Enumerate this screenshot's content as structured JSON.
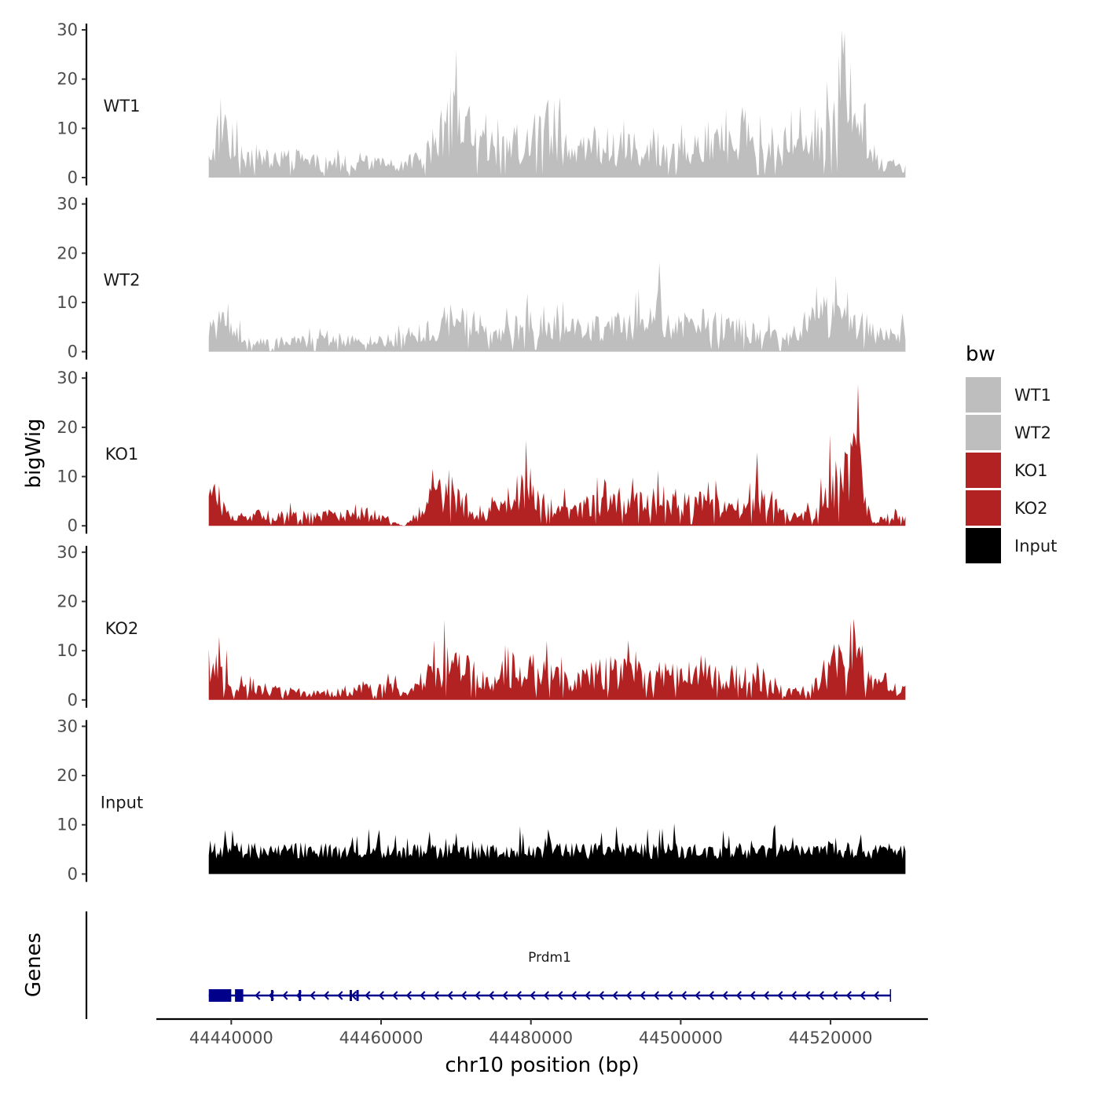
{
  "chart_data": {
    "type": "area",
    "chromosome": "chr10",
    "xlabel": "chr10 position (bp)",
    "ylabel": "bigWig",
    "xlim": [
      44430000,
      44533000
    ],
    "data_range": [
      44437000,
      44530000
    ],
    "xticks": [
      44440000,
      44460000,
      44480000,
      44500000,
      44520000
    ],
    "xtick_labels": [
      "44440000",
      "44460000",
      "44480000",
      "44500000",
      "44520000"
    ],
    "ylim": [
      0,
      30
    ],
    "yticks": [
      0,
      10,
      20,
      30
    ],
    "ytick_labels": [
      "0",
      "10",
      "20",
      "30"
    ],
    "legend": {
      "title": "bw",
      "position": "right",
      "entries": [
        {
          "label": "WT1",
          "color": "#bebebe"
        },
        {
          "label": "WT2",
          "color": "#bebebe"
        },
        {
          "label": "KO1",
          "color": "#b22222"
        },
        {
          "label": "KO2",
          "color": "#b22222"
        },
        {
          "label": "Input",
          "color": "#000000"
        }
      ]
    },
    "series": [
      {
        "name": "WT1",
        "color": "#bebebe",
        "profile": [
          {
            "x": 44437000,
            "y": 5
          },
          {
            "x": 44438800,
            "y": 17
          },
          {
            "x": 44441000,
            "y": 7
          },
          {
            "x": 44444000,
            "y": 5
          },
          {
            "x": 44447000,
            "y": 6
          },
          {
            "x": 44452000,
            "y": 4
          },
          {
            "x": 44458000,
            "y": 4
          },
          {
            "x": 44463000,
            "y": 3
          },
          {
            "x": 44466000,
            "y": 7
          },
          {
            "x": 44468000,
            "y": 12
          },
          {
            "x": 44469800,
            "y": 18
          },
          {
            "x": 44472000,
            "y": 10
          },
          {
            "x": 44476000,
            "y": 8
          },
          {
            "x": 44480000,
            "y": 12
          },
          {
            "x": 44485000,
            "y": 9
          },
          {
            "x": 44490000,
            "y": 8
          },
          {
            "x": 44495000,
            "y": 9
          },
          {
            "x": 44500000,
            "y": 7
          },
          {
            "x": 44505000,
            "y": 9
          },
          {
            "x": 44508000,
            "y": 14
          },
          {
            "x": 44512000,
            "y": 8
          },
          {
            "x": 44517000,
            "y": 9
          },
          {
            "x": 44520000,
            "y": 15
          },
          {
            "x": 44521500,
            "y": 25
          },
          {
            "x": 44523000,
            "y": 19
          },
          {
            "x": 44525000,
            "y": 7
          },
          {
            "x": 44528000,
            "y": 3
          },
          {
            "x": 44530000,
            "y": 3
          }
        ]
      },
      {
        "name": "WT2",
        "color": "#bebebe",
        "profile": [
          {
            "x": 44437000,
            "y": 9
          },
          {
            "x": 44439000,
            "y": 7
          },
          {
            "x": 44442000,
            "y": 3
          },
          {
            "x": 44446000,
            "y": 2
          },
          {
            "x": 44450000,
            "y": 3
          },
          {
            "x": 44455000,
            "y": 3
          },
          {
            "x": 44460000,
            "y": 3
          },
          {
            "x": 44465000,
            "y": 5
          },
          {
            "x": 44468000,
            "y": 8
          },
          {
            "x": 44471000,
            "y": 9
          },
          {
            "x": 44475000,
            "y": 5
          },
          {
            "x": 44480000,
            "y": 8
          },
          {
            "x": 44485000,
            "y": 6
          },
          {
            "x": 44490000,
            "y": 7
          },
          {
            "x": 44495000,
            "y": 8
          },
          {
            "x": 44496500,
            "y": 16
          },
          {
            "x": 44498000,
            "y": 7
          },
          {
            "x": 44502000,
            "y": 8
          },
          {
            "x": 44506000,
            "y": 7
          },
          {
            "x": 44510000,
            "y": 6
          },
          {
            "x": 44514000,
            "y": 3
          },
          {
            "x": 44518000,
            "y": 9
          },
          {
            "x": 44522000,
            "y": 12
          },
          {
            "x": 44524000,
            "y": 8
          },
          {
            "x": 44527000,
            "y": 4
          },
          {
            "x": 44530000,
            "y": 5
          }
        ]
      },
      {
        "name": "KO1",
        "color": "#b22222",
        "profile": [
          {
            "x": 44437000,
            "y": 9
          },
          {
            "x": 44438500,
            "y": 8
          },
          {
            "x": 44440000,
            "y": 2
          },
          {
            "x": 44444000,
            "y": 3
          },
          {
            "x": 44450000,
            "y": 3
          },
          {
            "x": 44455000,
            "y": 3
          },
          {
            "x": 44460000,
            "y": 2
          },
          {
            "x": 44463000,
            "y": 0
          },
          {
            "x": 44465000,
            "y": 3
          },
          {
            "x": 44467000,
            "y": 9
          },
          {
            "x": 44469000,
            "y": 11
          },
          {
            "x": 44471000,
            "y": 6
          },
          {
            "x": 44474000,
            "y": 3
          },
          {
            "x": 44477000,
            "y": 7
          },
          {
            "x": 44479500,
            "y": 12
          },
          {
            "x": 44482000,
            "y": 7
          },
          {
            "x": 44486000,
            "y": 4
          },
          {
            "x": 44490000,
            "y": 8
          },
          {
            "x": 44493000,
            "y": 6
          },
          {
            "x": 44497000,
            "y": 8
          },
          {
            "x": 44500000,
            "y": 6
          },
          {
            "x": 44503000,
            "y": 7
          },
          {
            "x": 44507000,
            "y": 4
          },
          {
            "x": 44510000,
            "y": 9
          },
          {
            "x": 44512000,
            "y": 7
          },
          {
            "x": 44515000,
            "y": 2
          },
          {
            "x": 44518000,
            "y": 4
          },
          {
            "x": 44520000,
            "y": 12
          },
          {
            "x": 44522500,
            "y": 15
          },
          {
            "x": 44523800,
            "y": 29
          },
          {
            "x": 44525000,
            "y": 4
          },
          {
            "x": 44526000,
            "y": 1
          },
          {
            "x": 44528000,
            "y": 3
          },
          {
            "x": 44530000,
            "y": 2
          }
        ]
      },
      {
        "name": "KO2",
        "color": "#b22222",
        "profile": [
          {
            "x": 44437000,
            "y": 7
          },
          {
            "x": 44438200,
            "y": 13
          },
          {
            "x": 44440000,
            "y": 3
          },
          {
            "x": 44445000,
            "y": 3
          },
          {
            "x": 44450000,
            "y": 2
          },
          {
            "x": 44455000,
            "y": 2
          },
          {
            "x": 44460000,
            "y": 4
          },
          {
            "x": 44464000,
            "y": 2
          },
          {
            "x": 44466000,
            "y": 6
          },
          {
            "x": 44469000,
            "y": 11
          },
          {
            "x": 44471000,
            "y": 9
          },
          {
            "x": 44474000,
            "y": 5
          },
          {
            "x": 44478000,
            "y": 9
          },
          {
            "x": 44481000,
            "y": 8
          },
          {
            "x": 44485000,
            "y": 5
          },
          {
            "x": 44490000,
            "y": 8
          },
          {
            "x": 44495000,
            "y": 7
          },
          {
            "x": 44500000,
            "y": 8
          },
          {
            "x": 44505000,
            "y": 6
          },
          {
            "x": 44510000,
            "y": 7
          },
          {
            "x": 44514000,
            "y": 2
          },
          {
            "x": 44517000,
            "y": 3
          },
          {
            "x": 44520000,
            "y": 9
          },
          {
            "x": 44523500,
            "y": 18
          },
          {
            "x": 44525000,
            "y": 5
          },
          {
            "x": 44528000,
            "y": 3
          },
          {
            "x": 44530000,
            "y": 3
          }
        ]
      },
      {
        "name": "Input",
        "color": "#000000",
        "profile": [
          {
            "x": 44437000,
            "y": 5
          },
          {
            "x": 44445000,
            "y": 6
          },
          {
            "x": 44455000,
            "y": 6
          },
          {
            "x": 44465000,
            "y": 6
          },
          {
            "x": 44475000,
            "y": 6
          },
          {
            "x": 44485000,
            "y": 6
          },
          {
            "x": 44495000,
            "y": 6
          },
          {
            "x": 44505000,
            "y": 6
          },
          {
            "x": 44515000,
            "y": 6
          },
          {
            "x": 44525000,
            "y": 6
          },
          {
            "x": 44530000,
            "y": 6
          }
        ]
      }
    ],
    "genes_track": {
      "title": "Genes",
      "genes": [
        {
          "name": "Prdm1",
          "strand": "-",
          "start": 44437000,
          "end": 44528000,
          "exons": [
            [
              44437000,
              44440000
            ],
            [
              44440500,
              44441600
            ],
            [
              44445300,
              44445500
            ],
            [
              44449000,
              44449200
            ],
            [
              44455800,
              44456000
            ],
            [
              44456700,
              44457000
            ]
          ]
        }
      ]
    }
  }
}
